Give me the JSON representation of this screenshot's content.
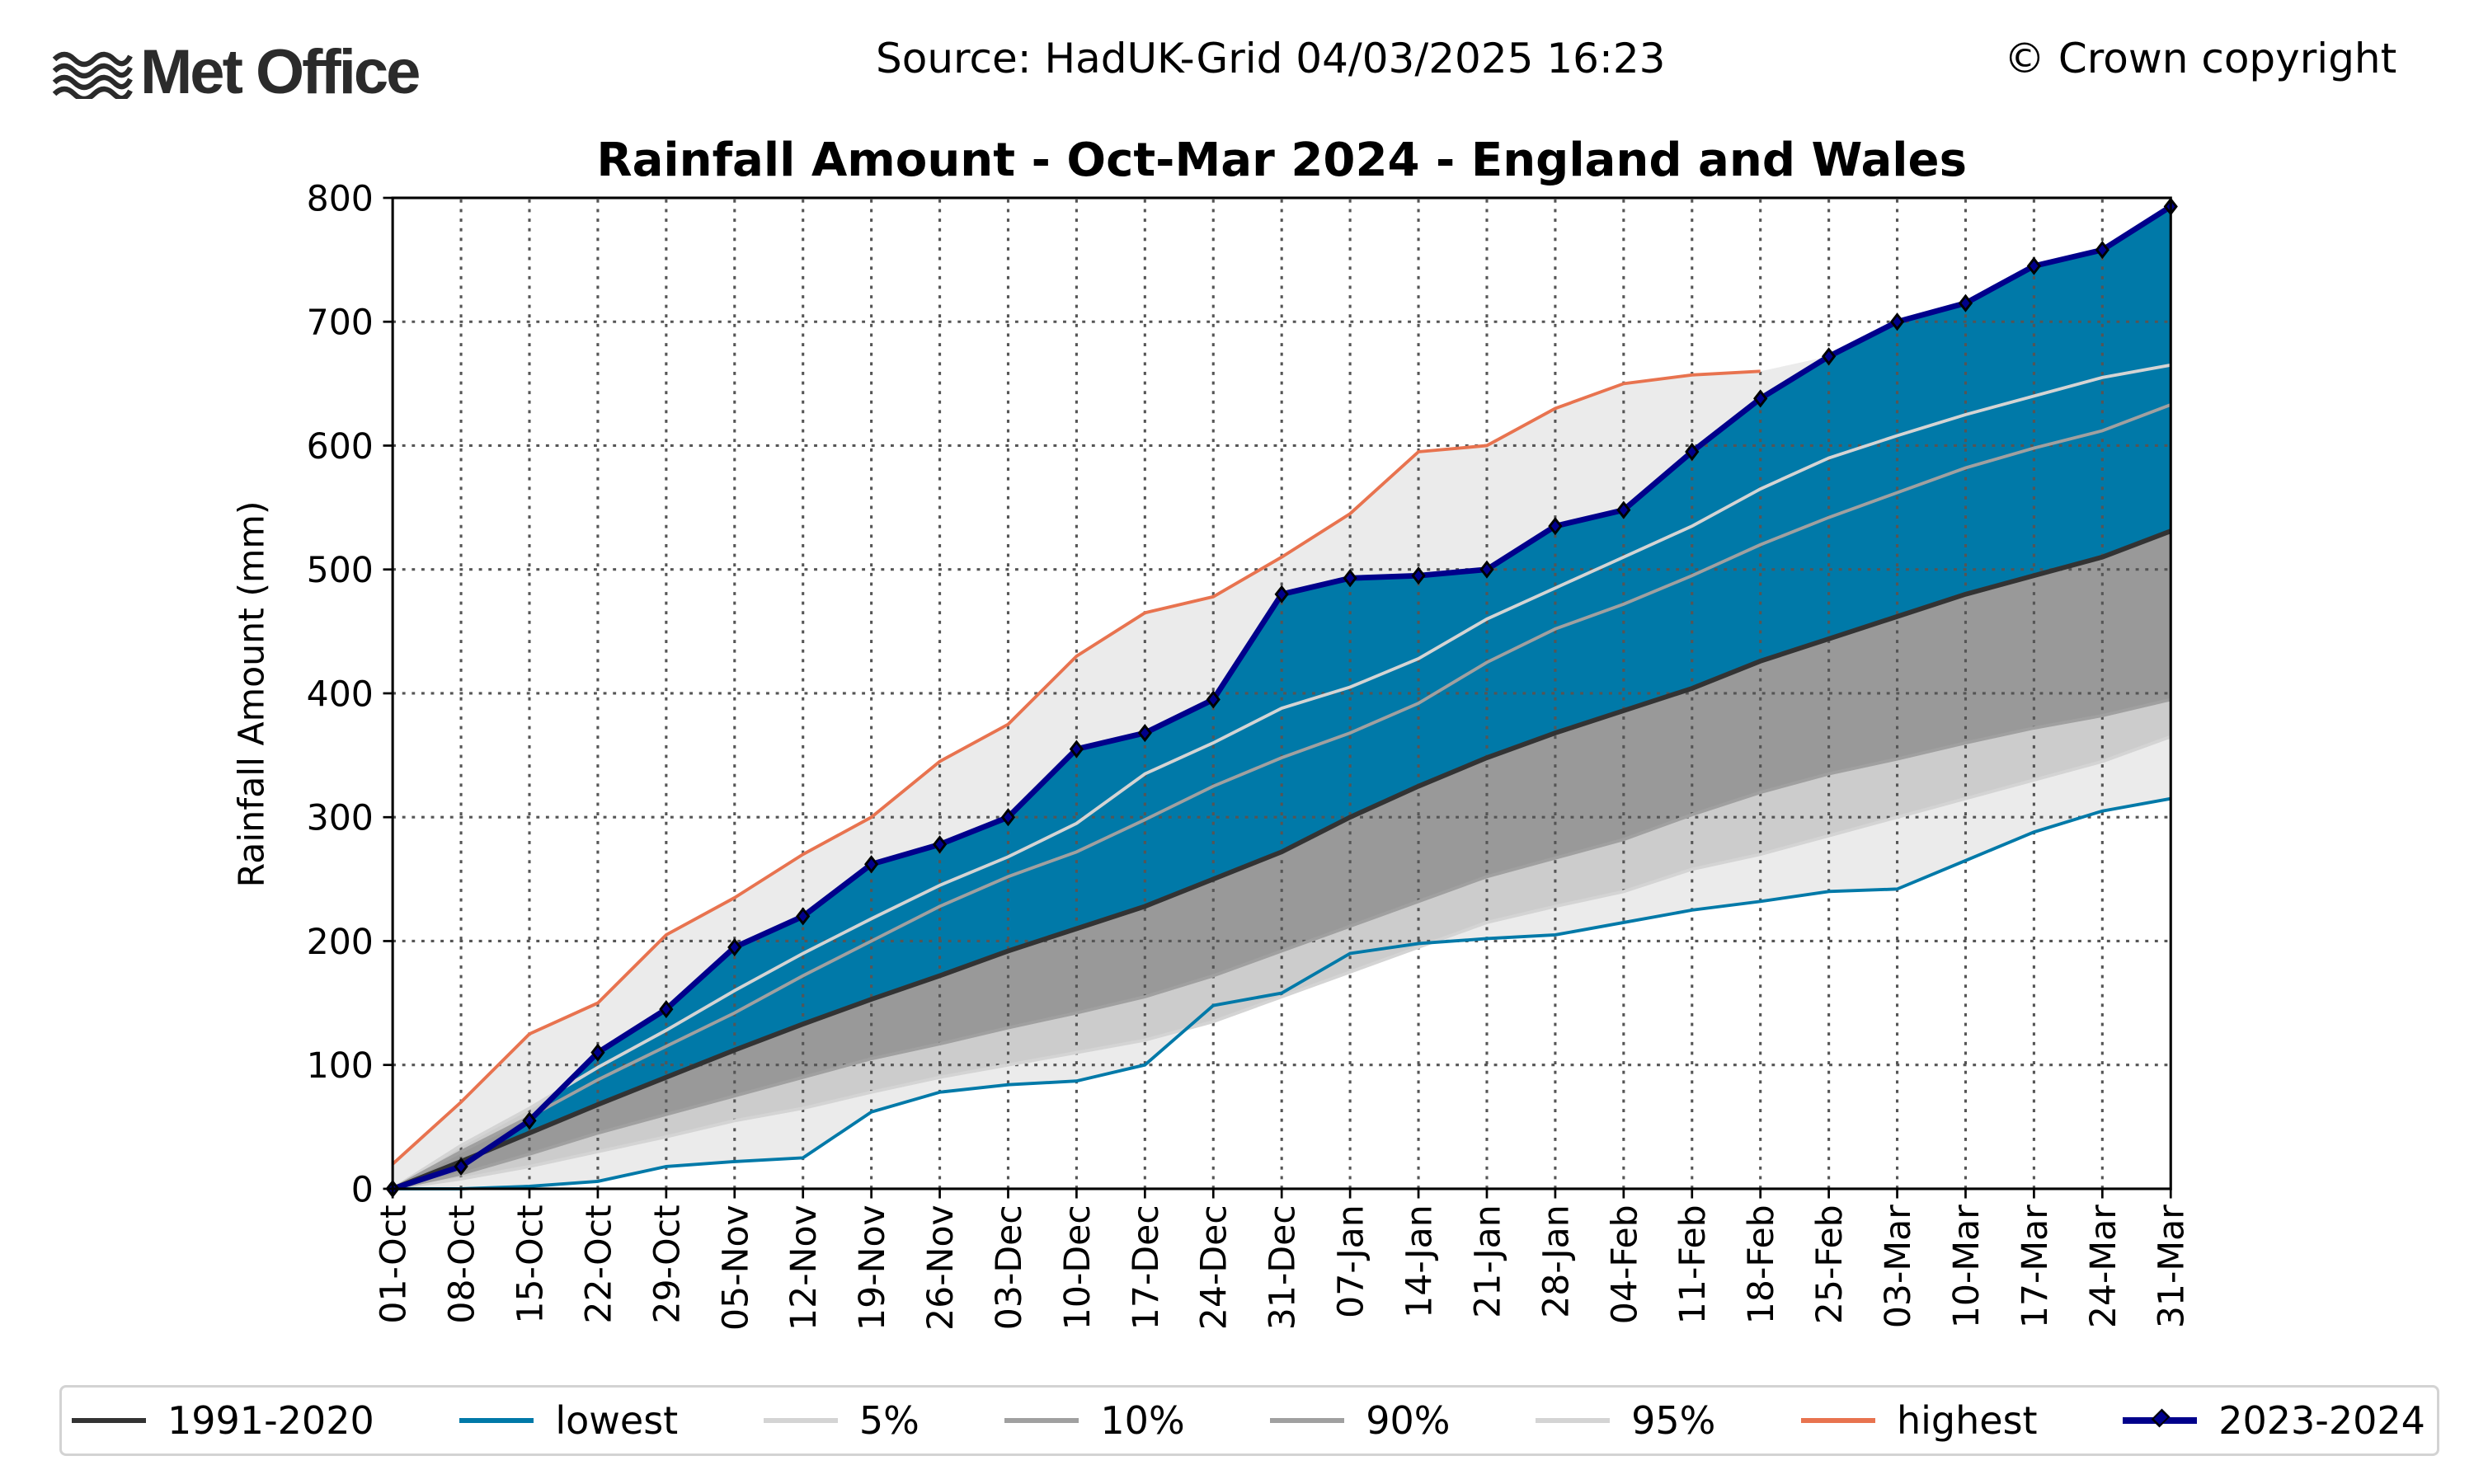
{
  "header": {
    "logo": "Met Office",
    "source": "Source: HadUK-Grid 04/03/2025 16:23",
    "copyright": "© Crown copyright"
  },
  "colors": {
    "mean": "#333333",
    "lowest": "#0079a8",
    "p5": "#d4d4d4",
    "p10": "#a0a0a0",
    "p90": "#a0a0a0",
    "p95": "#d4d4d4",
    "highest": "#e8734f",
    "observed": "#00008b",
    "observed_fill": "#0079a8",
    "range_fill": "#ebebeb",
    "band5_95": "#cccccc",
    "band10_90": "#999999"
  },
  "chart_data": {
    "type": "line",
    "title": "Rainfall Amount - Oct-Mar 2024 - England and Wales",
    "xlabel": "",
    "ylabel": "Rainfall Amount (mm)",
    "ylim": [
      0,
      800
    ],
    "yticks": [
      0,
      100,
      200,
      300,
      400,
      500,
      600,
      700,
      800
    ],
    "grid": true,
    "legend_position": "bottom",
    "x": [
      "01-Oct",
      "08-Oct",
      "15-Oct",
      "22-Oct",
      "29-Oct",
      "05-Nov",
      "12-Nov",
      "19-Nov",
      "26-Nov",
      "03-Dec",
      "10-Dec",
      "17-Dec",
      "24-Dec",
      "31-Dec",
      "07-Jan",
      "14-Jan",
      "21-Jan",
      "28-Jan",
      "04-Feb",
      "11-Feb",
      "18-Feb",
      "25-Feb",
      "03-Mar",
      "10-Mar",
      "17-Mar",
      "24-Mar",
      "31-Mar"
    ],
    "series": [
      {
        "name": "1991-2020",
        "key": "mean",
        "values": [
          0,
          22,
          45,
          68,
          90,
          112,
          133,
          153,
          172,
          192,
          210,
          228,
          250,
          272,
          300,
          325,
          348,
          368,
          386,
          404,
          426,
          444,
          462,
          480,
          495,
          510,
          531
        ]
      },
      {
        "name": "lowest",
        "key": "lowest",
        "values": [
          0,
          0,
          2,
          6,
          18,
          22,
          25,
          62,
          78,
          84,
          87,
          100,
          148,
          158,
          190,
          198,
          202,
          205,
          215,
          225,
          232,
          240,
          242,
          265,
          288,
          305,
          315
        ]
      },
      {
        "name": "5%",
        "key": "p5",
        "values": [
          0,
          8,
          18,
          30,
          42,
          55,
          65,
          78,
          90,
          100,
          110,
          120,
          135,
          155,
          175,
          195,
          215,
          228,
          240,
          258,
          270,
          285,
          300,
          315,
          330,
          345,
          365
        ]
      },
      {
        "name": "10%",
        "key": "p10",
        "values": [
          0,
          12,
          28,
          45,
          60,
          75,
          90,
          105,
          117,
          130,
          142,
          155,
          172,
          192,
          212,
          232,
          252,
          267,
          282,
          302,
          320,
          335,
          347,
          360,
          372,
          382,
          395
        ]
      },
      {
        "name": "90%",
        "key": "p90",
        "values": [
          0,
          30,
          58,
          88,
          115,
          142,
          172,
          200,
          228,
          252,
          272,
          298,
          325,
          348,
          368,
          392,
          425,
          452,
          472,
          495,
          520,
          542,
          562,
          582,
          598,
          612,
          633
        ]
      },
      {
        "name": "95%",
        "key": "p95",
        "values": [
          0,
          35,
          65,
          98,
          128,
          160,
          190,
          218,
          245,
          268,
          295,
          335,
          360,
          388,
          405,
          428,
          460,
          485,
          510,
          535,
          565,
          590,
          608,
          625,
          640,
          655,
          665
        ]
      },
      {
        "name": "highest",
        "key": "highest",
        "values": [
          20,
          70,
          125,
          150,
          205,
          235,
          270,
          300,
          345,
          375,
          430,
          465,
          478,
          510,
          545,
          595,
          600,
          630,
          650,
          657,
          660,
          null,
          null,
          null,
          null,
          null,
          null
        ]
      },
      {
        "name": "2023-2024",
        "key": "observed",
        "values": [
          0,
          18,
          55,
          110,
          145,
          195,
          220,
          262,
          278,
          300,
          355,
          368,
          395,
          480,
          493,
          495,
          500,
          535,
          548,
          595,
          638,
          672,
          700,
          715,
          745,
          758,
          793
        ]
      }
    ]
  }
}
